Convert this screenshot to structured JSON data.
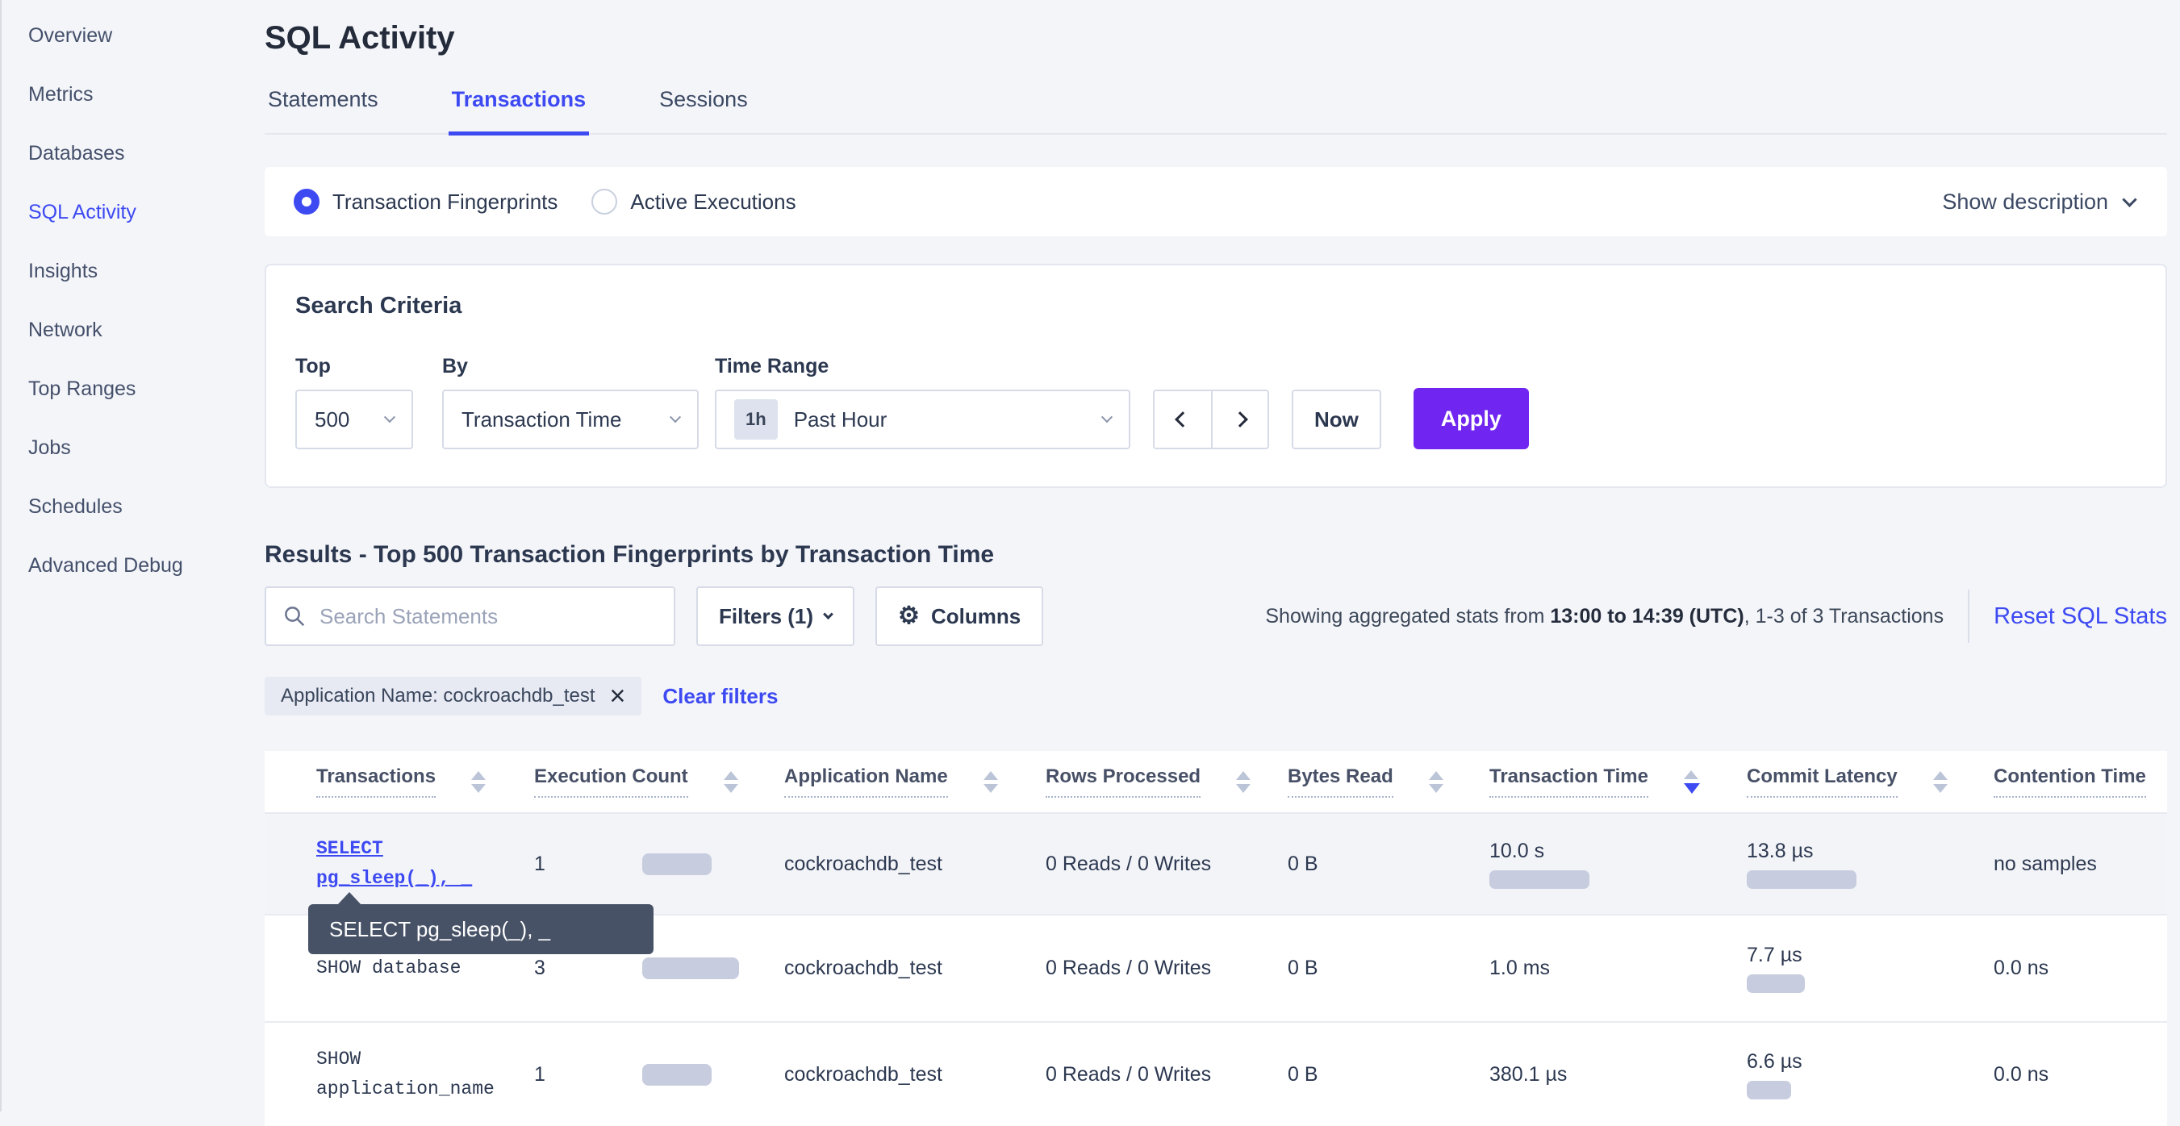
{
  "colors": {
    "accent_blue": "#3d4af2",
    "apply_button_purple": "#7026f0",
    "bar_fill": "#c7cddf",
    "tooltip_background": "#475266",
    "page_background": "#f4f5f9"
  },
  "sidebar": {
    "items": [
      {
        "label": "Overview",
        "active": false
      },
      {
        "label": "Metrics",
        "active": false
      },
      {
        "label": "Databases",
        "active": false
      },
      {
        "label": "SQL Activity",
        "active": true
      },
      {
        "label": "Insights",
        "active": false
      },
      {
        "label": "Network",
        "active": false
      },
      {
        "label": "Top Ranges",
        "active": false
      },
      {
        "label": "Jobs",
        "active": false
      },
      {
        "label": "Schedules",
        "active": false
      },
      {
        "label": "Advanced Debug",
        "active": false
      }
    ]
  },
  "page": {
    "title": "SQL Activity",
    "tabs": [
      {
        "label": "Statements",
        "active": false
      },
      {
        "label": "Transactions",
        "active": true
      },
      {
        "label": "Sessions",
        "active": false
      }
    ]
  },
  "view_toggle": {
    "options": [
      {
        "label": "Transaction Fingerprints",
        "selected": true
      },
      {
        "label": "Active Executions",
        "selected": false
      }
    ],
    "show_description_label": "Show description"
  },
  "search_criteria": {
    "heading": "Search Criteria",
    "top_label": "Top",
    "top_value": "500",
    "by_label": "By",
    "by_value": "Transaction Time",
    "time_range_label": "Time Range",
    "time_range_badge": "1h",
    "time_range_value": "Past Hour",
    "now_label": "Now",
    "apply_label": "Apply"
  },
  "results": {
    "heading": "Results - Top 500 Transaction Fingerprints by Transaction Time",
    "search_placeholder": "Search Statements",
    "filters_label": "Filters (1)",
    "columns_label": "Columns",
    "stats_prefix": "Showing aggregated stats from ",
    "stats_bold": "13:00 to 14:39 (UTC)",
    "stats_suffix": ", 1-3 of 3 Transactions",
    "reset_label": "Reset SQL Stats",
    "filter_chip": "Application Name: cockroachdb_test",
    "clear_filters_label": "Clear filters"
  },
  "tooltip": {
    "text": "SELECT pg_sleep(_), _"
  },
  "table": {
    "sorted_by": "Transaction Time",
    "sort_direction": "desc",
    "columns": [
      {
        "label": "Transactions",
        "sort": null
      },
      {
        "label": "Execution Count",
        "sort": null
      },
      {
        "label": "Application Name",
        "sort": null
      },
      {
        "label": "Rows Processed",
        "sort": null
      },
      {
        "label": "Bytes Read",
        "sort": null
      },
      {
        "label": "Transaction Time",
        "sort": "desc"
      },
      {
        "label": "Commit Latency",
        "sort": null
      },
      {
        "label": "Contention Time",
        "sort": null
      }
    ],
    "rows": [
      {
        "stmt_line1": "SELECT",
        "stmt_line2": "pg_sleep(_), _",
        "is_link": true,
        "execution_count": "1",
        "count_bar": 86,
        "app_name": "cockroachdb_test",
        "rows_processed": "0 Reads / 0 Writes",
        "bytes_read": "0 B",
        "transaction_time": "10.0 s",
        "transaction_time_bar": 124,
        "commit_latency": "13.8 µs",
        "commit_latency_bar": 136,
        "contention_time": "no samples"
      },
      {
        "stmt_line1": "SHOW database",
        "stmt_line2": "",
        "is_link": false,
        "execution_count": "3",
        "count_bar": 120,
        "app_name": "cockroachdb_test",
        "rows_processed": "0 Reads / 0 Writes",
        "bytes_read": "0 B",
        "transaction_time": "1.0 ms",
        "transaction_time_bar": 0,
        "commit_latency": "7.7 µs",
        "commit_latency_bar": 72,
        "contention_time": "0.0 ns"
      },
      {
        "stmt_line1": "SHOW",
        "stmt_line2": "application_name",
        "is_link": false,
        "execution_count": "1",
        "count_bar": 86,
        "app_name": "cockroachdb_test",
        "rows_processed": "0 Reads / 0 Writes",
        "bytes_read": "0 B",
        "transaction_time": "380.1 µs",
        "transaction_time_bar": 0,
        "commit_latency": "6.6 µs",
        "commit_latency_bar": 55,
        "contention_time": "0.0 ns"
      }
    ]
  }
}
